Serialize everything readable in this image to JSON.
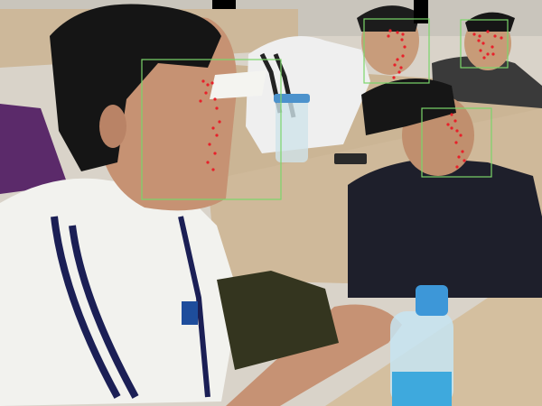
{
  "image": {
    "kind": "photograph",
    "colors": {
      "box": "#7bd66a",
      "landmark": "#e8202a",
      "redaction": "#000000"
    }
  },
  "face_boxes": [
    {
      "id": "face-1",
      "landmark_count": 14
    },
    {
      "id": "face-2",
      "landmark_count": 12
    },
    {
      "id": "face-3",
      "landmark_count": 11
    },
    {
      "id": "face-4",
      "landmark_count": 12
    }
  ],
  "redactions": [
    {
      "id": "redaction-1"
    },
    {
      "id": "redaction-2"
    }
  ]
}
